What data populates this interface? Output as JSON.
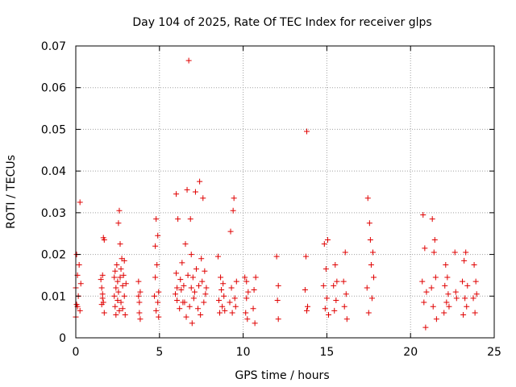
{
  "chart_data": {
    "type": "scatter",
    "title": "Day 104 of 2025, Rate Of TEC Index for receiver glps",
    "xlabel": "GPS time / hours",
    "ylabel": "ROTI / TECUs",
    "xlim": [
      0,
      25
    ],
    "ylim": [
      0,
      0.07
    ],
    "xticks": [
      0,
      5,
      10,
      15,
      20,
      25
    ],
    "xtick_labels": [
      "0",
      "5",
      "10",
      "15",
      "20",
      "25"
    ],
    "yticks": [
      0,
      0.01,
      0.02,
      0.03,
      0.04,
      0.05,
      0.06,
      0.07
    ],
    "ytick_labels": [
      "0",
      "0.01",
      "0.02",
      "0.03",
      "0.04",
      "0.05",
      "0.06",
      "0.07"
    ],
    "grid": true,
    "marker": "plus",
    "color": "#e00000",
    "series": [
      {
        "name": "ROTI",
        "x": [
          0.0,
          0.0,
          0.05,
          0.05,
          0.1,
          0.1,
          0.15,
          0.2,
          0.25,
          0.25,
          0.3,
          1.55,
          1.55,
          1.6,
          1.6,
          1.65,
          1.65,
          1.7,
          1.7,
          1.5,
          1.6,
          2.3,
          2.3,
          2.35,
          2.35,
          2.4,
          2.4,
          2.45,
          2.5,
          2.5,
          2.55,
          2.55,
          2.6,
          2.6,
          2.65,
          2.65,
          2.7,
          2.7,
          2.75,
          2.8,
          2.8,
          2.85,
          2.9,
          2.9,
          2.95,
          3.0,
          3.75,
          3.75,
          3.8,
          3.8,
          3.85,
          3.85,
          4.7,
          4.75,
          4.75,
          4.8,
          4.8,
          4.85,
          4.9,
          4.9,
          4.95,
          4.95,
          5.95,
          6.0,
          6.0,
          6.05,
          6.05,
          6.1,
          6.2,
          6.25,
          6.3,
          6.35,
          6.4,
          6.45,
          6.5,
          6.55,
          6.6,
          6.65,
          6.7,
          6.75,
          6.8,
          6.85,
          6.9,
          6.9,
          6.95,
          7.0,
          7.05,
          7.1,
          7.15,
          7.2,
          7.3,
          7.35,
          7.4,
          7.45,
          7.5,
          7.55,
          7.6,
          7.65,
          7.7,
          7.75,
          7.8,
          8.5,
          8.55,
          8.6,
          8.65,
          8.7,
          8.75,
          8.8,
          8.85,
          8.9,
          9.2,
          9.25,
          9.3,
          9.35,
          9.4,
          9.45,
          9.5,
          9.55,
          9.6,
          10.1,
          10.15,
          10.2,
          10.2,
          10.25,
          10.3,
          10.6,
          10.65,
          10.7,
          10.75,
          12.0,
          12.05,
          12.1,
          12.1,
          13.7,
          13.75,
          13.8,
          13.8,
          13.85,
          14.8,
          14.85,
          14.9,
          14.95,
          15.0,
          15.05,
          15.1,
          15.4,
          15.45,
          15.5,
          15.55,
          15.6,
          16.0,
          16.05,
          16.1,
          16.15,
          16.2,
          17.4,
          17.45,
          17.5,
          17.55,
          17.6,
          17.65,
          17.7,
          17.75,
          17.8,
          20.7,
          20.75,
          20.8,
          20.85,
          20.9,
          20.95,
          21.25,
          21.3,
          21.35,
          21.4,
          21.45,
          21.5,
          21.55,
          22.0,
          22.05,
          22.1,
          22.15,
          22.2,
          22.25,
          22.3,
          22.65,
          22.7,
          22.75,
          23.1,
          23.15,
          23.2,
          23.25,
          23.3,
          23.35,
          23.4,
          23.75,
          23.8,
          23.85,
          23.9,
          23.95
        ],
        "y": [
          0.005,
          0.012,
          0.008,
          0.02,
          0.015,
          0.0075,
          0.01,
          0.0175,
          0.0325,
          0.0065,
          0.013,
          0.008,
          0.012,
          0.015,
          0.0105,
          0.024,
          0.0085,
          0.0235,
          0.006,
          0.014,
          0.0095,
          0.01,
          0.0145,
          0.0075,
          0.016,
          0.012,
          0.0055,
          0.0175,
          0.009,
          0.0135,
          0.0275,
          0.011,
          0.0305,
          0.0065,
          0.0225,
          0.0145,
          0.0165,
          0.0085,
          0.019,
          0.0125,
          0.007,
          0.015,
          0.0185,
          0.01,
          0.0055,
          0.013,
          0.01,
          0.0135,
          0.006,
          0.0085,
          0.011,
          0.0045,
          0.01,
          0.0145,
          0.022,
          0.0065,
          0.0285,
          0.0175,
          0.0085,
          0.0245,
          0.011,
          0.005,
          0.0105,
          0.0155,
          0.0345,
          0.009,
          0.012,
          0.0285,
          0.007,
          0.014,
          0.0115,
          0.018,
          0.0085,
          0.0125,
          0.0085,
          0.0225,
          0.005,
          0.0355,
          0.015,
          0.0665,
          0.0075,
          0.0285,
          0.012,
          0.02,
          0.0035,
          0.0145,
          0.0095,
          0.011,
          0.035,
          0.0165,
          0.007,
          0.0125,
          0.0375,
          0.0055,
          0.019,
          0.0135,
          0.0335,
          0.0085,
          0.016,
          0.0105,
          0.012,
          0.0195,
          0.009,
          0.006,
          0.0145,
          0.0115,
          0.0075,
          0.013,
          0.01,
          0.0065,
          0.0085,
          0.0255,
          0.012,
          0.006,
          0.0305,
          0.0335,
          0.0095,
          0.0075,
          0.0135,
          0.0145,
          0.006,
          0.0095,
          0.0135,
          0.0045,
          0.011,
          0.007,
          0.0115,
          0.0035,
          0.0145,
          0.0195,
          0.009,
          0.0045,
          0.0125,
          0.0115,
          0.0195,
          0.0495,
          0.0065,
          0.0075,
          0.0125,
          0.0225,
          0.007,
          0.0165,
          0.0095,
          0.0235,
          0.0055,
          0.0125,
          0.0065,
          0.0175,
          0.009,
          0.0135,
          0.0135,
          0.0075,
          0.0205,
          0.0105,
          0.0045,
          0.012,
          0.0335,
          0.006,
          0.0275,
          0.0235,
          0.0175,
          0.0095,
          0.0205,
          0.0145,
          0.0135,
          0.0295,
          0.0085,
          0.0215,
          0.0025,
          0.011,
          0.012,
          0.0285,
          0.0075,
          0.0205,
          0.0235,
          0.0145,
          0.0045,
          0.006,
          0.0125,
          0.0175,
          0.0085,
          0.0145,
          0.0105,
          0.0075,
          0.0205,
          0.011,
          0.0095,
          0.0135,
          0.0055,
          0.0185,
          0.0095,
          0.0205,
          0.0075,
          0.0125,
          0.0095,
          0.0175,
          0.006,
          0.0135,
          0.0105
        ]
      }
    ]
  }
}
